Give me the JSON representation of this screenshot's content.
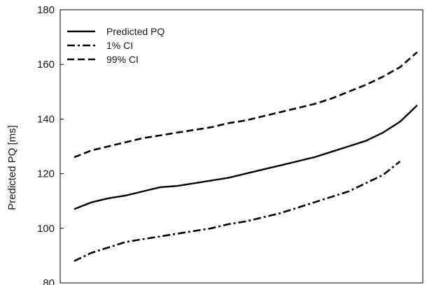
{
  "chart_data": {
    "type": "line",
    "title": "",
    "xlabel": "",
    "ylabel": "Predicted PQ [ms]",
    "ylim": [
      80,
      180
    ],
    "yticks": [
      80,
      100,
      120,
      140,
      160,
      180
    ],
    "xlim": [
      0,
      1
    ],
    "grid": false,
    "legend_position": "top-left",
    "x": [
      0,
      0.05,
      0.1,
      0.15,
      0.2,
      0.25,
      0.3,
      0.35,
      0.4,
      0.45,
      0.5,
      0.55,
      0.6,
      0.65,
      0.7,
      0.75,
      0.8,
      0.85,
      0.9,
      0.95,
      1
    ],
    "series": [
      {
        "name": "Predicted PQ",
        "style": "solid",
        "values": [
          107,
          109.5,
          111,
          112,
          113.5,
          115,
          115.5,
          116.5,
          117.5,
          118.5,
          120,
          121.5,
          123,
          124.5,
          126,
          128,
          130,
          132,
          135,
          139,
          145
        ]
      },
      {
        "name": "1% CI",
        "style": "dashdot",
        "end_index": 19,
        "values": [
          88,
          91,
          93,
          95,
          96,
          97,
          98,
          99,
          100,
          101.5,
          102.5,
          104,
          105.5,
          107.5,
          109.5,
          111.5,
          113.5,
          116.5,
          119.5,
          124.5,
          null
        ]
      },
      {
        "name": "99% CI",
        "style": "dashed",
        "values": [
          126,
          128.5,
          130,
          131.5,
          133,
          134,
          135,
          136,
          137,
          138.5,
          139.5,
          141,
          142.5,
          144,
          145.5,
          147.5,
          150,
          152.5,
          155.5,
          159,
          164.5
        ]
      }
    ],
    "colors": {
      "line": "#000000",
      "axis": "#000000",
      "text": "#1a1a1a"
    }
  }
}
